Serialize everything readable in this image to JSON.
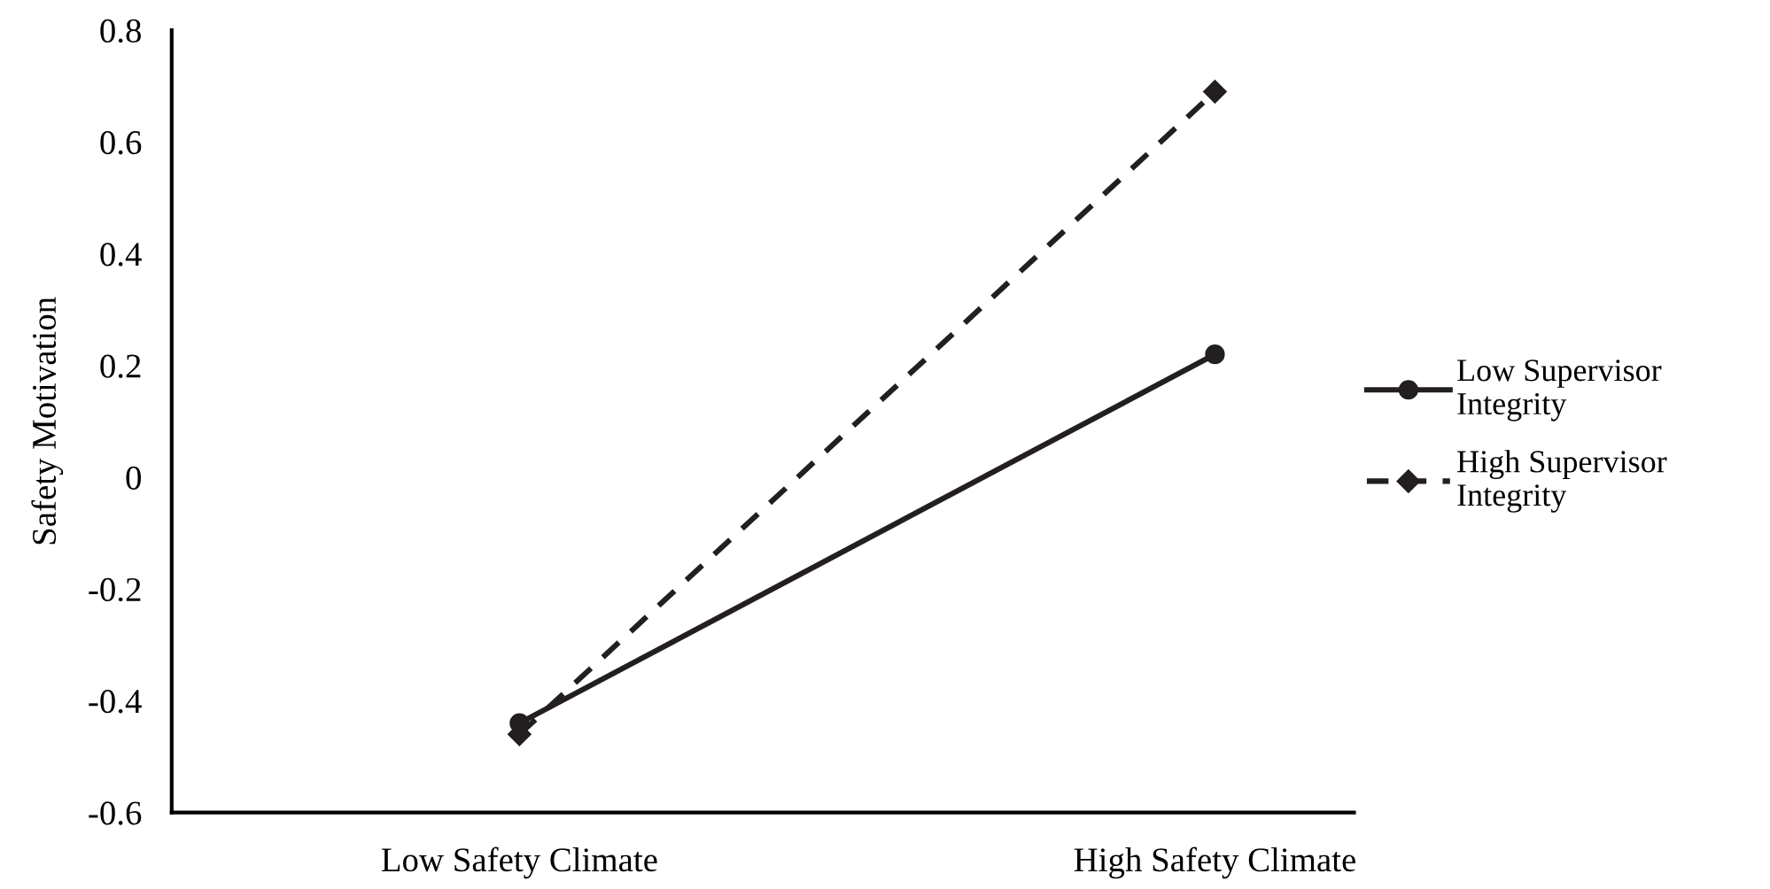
{
  "chart_data": {
    "type": "line",
    "ylabel": "Safety Motivation",
    "categories": [
      "Low Safety Climate",
      "High Safety Climate"
    ],
    "series": [
      {
        "name": "Low Supervisor\nIntegrity",
        "color": "#231f20",
        "values": [
          -0.44,
          0.22
        ],
        "marker": "circle",
        "line_style": "solid"
      },
      {
        "name": "High Supervisor\nIntegrity",
        "color": "#231f20",
        "values": [
          -0.46,
          0.69
        ],
        "marker": "diamond",
        "line_style": "dashed"
      }
    ],
    "ylim": [
      -0.6,
      0.8
    ],
    "yticks": [
      -0.6,
      -0.4,
      -0.2,
      0,
      0.2,
      0.4,
      0.6,
      0.8
    ],
    "grid": false,
    "legend": "right"
  }
}
